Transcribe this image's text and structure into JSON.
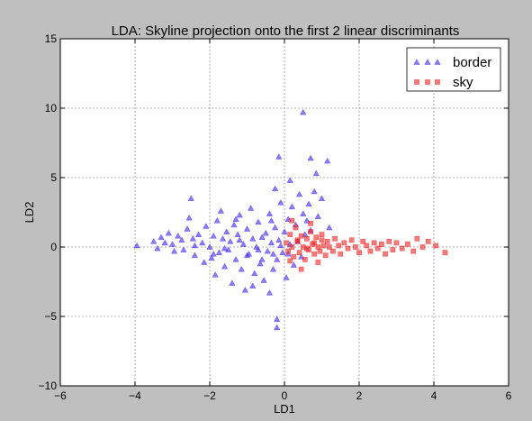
{
  "chart_data": {
    "type": "scatter",
    "title": "LDA: Skyline projection onto the first 2 linear discriminants",
    "xlabel": "LD1",
    "ylabel": "LD2",
    "xlim": [
      -6,
      6
    ],
    "ylim": [
      -10,
      15
    ],
    "x_ticks": [
      "−6",
      "−4",
      "−2",
      "0",
      "2",
      "4",
      "6"
    ],
    "y_ticks": [
      "−10",
      "−5",
      "0",
      "5",
      "10",
      "15"
    ],
    "grid": true,
    "legend_position": "top-right",
    "series": [
      {
        "name": "border",
        "marker": "triangle",
        "color": "#4422ee",
        "points": [
          [
            -3.95,
            0.1
          ],
          [
            -3.5,
            0.4
          ],
          [
            -3.4,
            -0.1
          ],
          [
            -3.3,
            0.7
          ],
          [
            -3.2,
            0.3
          ],
          [
            -3.1,
            1.0
          ],
          [
            -3.0,
            0.2
          ],
          [
            -2.95,
            -0.3
          ],
          [
            -2.85,
            0.8
          ],
          [
            -2.75,
            0.5
          ],
          [
            -2.7,
            -0.2
          ],
          [
            -2.6,
            1.3
          ],
          [
            -2.55,
            2.1
          ],
          [
            -2.5,
            3.5
          ],
          [
            -2.45,
            0.6
          ],
          [
            -2.4,
            -0.6
          ],
          [
            -2.3,
            0.9
          ],
          [
            -2.2,
            0.3
          ],
          [
            -2.15,
            -1.1
          ],
          [
            -2.1,
            1.5
          ],
          [
            -2.0,
            0.0
          ],
          [
            -1.95,
            -0.8
          ],
          [
            -1.9,
            0.8
          ],
          [
            -1.85,
            -2.0
          ],
          [
            -1.8,
            1.9
          ],
          [
            -1.75,
            -0.4
          ],
          [
            -1.7,
            2.6
          ],
          [
            -1.65,
            0.6
          ],
          [
            -1.6,
            -1.4
          ],
          [
            -1.55,
            1.1
          ],
          [
            -1.5,
            -0.2
          ],
          [
            -1.45,
            0.4
          ],
          [
            -1.4,
            -2.6
          ],
          [
            -1.35,
            1.6
          ],
          [
            -1.3,
            -0.9
          ],
          [
            -1.25,
            0.9
          ],
          [
            -1.2,
            2.3
          ],
          [
            -1.15,
            -1.6
          ],
          [
            -1.1,
            0.2
          ],
          [
            -1.05,
            -3.1
          ],
          [
            -1.0,
            1.3
          ],
          [
            -0.95,
            -0.5
          ],
          [
            -0.9,
            2.8
          ],
          [
            -0.85,
            0.6
          ],
          [
            -0.8,
            -1.9
          ],
          [
            -0.75,
            0.0
          ],
          [
            -0.7,
            1.8
          ],
          [
            -0.65,
            -1.2
          ],
          [
            -0.6,
            0.7
          ],
          [
            -0.55,
            -2.4
          ],
          [
            -0.5,
            1.0
          ],
          [
            -0.45,
            -0.3
          ],
          [
            -0.4,
            2.4
          ],
          [
            -0.35,
            0.3
          ],
          [
            -0.3,
            -1.6
          ],
          [
            -0.25,
            1.4
          ],
          [
            -0.2,
            -0.9
          ],
          [
            -0.15,
            0.5
          ],
          [
            -0.1,
            3.2
          ],
          [
            -0.05,
            -0.4
          ],
          [
            0.0,
            1.1
          ],
          [
            0.05,
            -2.2
          ],
          [
            0.1,
            2.0
          ],
          [
            0.15,
            0.2
          ],
          [
            0.2,
            2.9
          ],
          [
            0.25,
            -1.3
          ],
          [
            0.3,
            1.6
          ],
          [
            0.35,
            0.4
          ],
          [
            0.4,
            3.8
          ],
          [
            0.45,
            -0.7
          ],
          [
            0.5,
            2.4
          ],
          [
            0.55,
            0.9
          ],
          [
            0.6,
            1.9
          ],
          [
            0.65,
            3.1
          ],
          [
            0.7,
            1.2
          ],
          [
            0.8,
            4.0
          ],
          [
            0.9,
            2.2
          ],
          [
            1.0,
            3.5
          ],
          [
            1.2,
            1.4
          ],
          [
            -0.25,
            4.2
          ],
          [
            -0.15,
            6.5
          ],
          [
            0.5,
            9.7
          ],
          [
            0.7,
            6.4
          ],
          [
            0.85,
            5.3
          ],
          [
            1.15,
            6.2
          ],
          [
            0.15,
            4.8
          ],
          [
            -0.2,
            -5.2
          ],
          [
            -0.2,
            -5.8
          ],
          [
            -0.4,
            -3.3
          ],
          [
            -0.85,
            -2.8
          ],
          [
            -1.6,
            -0.1
          ],
          [
            -1.0,
            -0.6
          ],
          [
            -0.7,
            -0.2
          ],
          [
            -0.3,
            -0.5
          ],
          [
            -1.2,
            0.5
          ],
          [
            -0.6,
            -0.9
          ],
          [
            -2.4,
            0.1
          ],
          [
            -1.9,
            -0.5
          ],
          [
            -0.1,
            0.1
          ],
          [
            0.1,
            -0.5
          ],
          [
            -0.35,
            1.9
          ],
          [
            -1.3,
            2.0
          ]
        ]
      },
      {
        "name": "sky",
        "marker": "square",
        "color": "#ee2222",
        "points": [
          [
            0.05,
            0.3
          ],
          [
            0.1,
            -0.3
          ],
          [
            0.15,
            0.9
          ],
          [
            0.2,
            0.0
          ],
          [
            0.25,
            -0.7
          ],
          [
            0.3,
            1.4
          ],
          [
            0.35,
            0.4
          ],
          [
            0.4,
            -0.4
          ],
          [
            0.45,
            0.8
          ],
          [
            0.5,
            0.0
          ],
          [
            0.55,
            -0.9
          ],
          [
            0.6,
            0.6
          ],
          [
            0.65,
            -0.2
          ],
          [
            0.7,
            1.1
          ],
          [
            0.75,
            0.2
          ],
          [
            0.8,
            -0.5
          ],
          [
            0.85,
            0.7
          ],
          [
            0.9,
            0.0
          ],
          [
            0.95,
            -0.3
          ],
          [
            1.0,
            0.5
          ],
          [
            1.05,
            0.1
          ],
          [
            1.1,
            -0.6
          ],
          [
            1.15,
            0.4
          ],
          [
            1.2,
            0.0
          ],
          [
            1.3,
            -0.3
          ],
          [
            1.35,
            0.6
          ],
          [
            1.45,
            0.1
          ],
          [
            1.5,
            -0.5
          ],
          [
            1.6,
            0.3
          ],
          [
            1.7,
            -0.1
          ],
          [
            1.8,
            0.5
          ],
          [
            1.9,
            0.0
          ],
          [
            2.0,
            -0.4
          ],
          [
            2.1,
            0.4
          ],
          [
            2.2,
            0.1
          ],
          [
            2.3,
            -0.3
          ],
          [
            2.4,
            0.3
          ],
          [
            2.5,
            -0.1
          ],
          [
            2.6,
            0.2
          ],
          [
            2.7,
            -0.5
          ],
          [
            2.8,
            0.4
          ],
          [
            2.9,
            -0.2
          ],
          [
            3.0,
            0.3
          ],
          [
            3.15,
            -0.1
          ],
          [
            3.3,
            0.2
          ],
          [
            3.45,
            -0.3
          ],
          [
            3.55,
            0.6
          ],
          [
            3.7,
            0.0
          ],
          [
            3.85,
            0.4
          ],
          [
            4.05,
            0.1
          ],
          [
            4.3,
            -0.4
          ],
          [
            0.2,
            1.9
          ],
          [
            0.45,
            -1.6
          ],
          [
            0.7,
            1.7
          ],
          [
            0.9,
            -1.1
          ],
          [
            0.35,
            0.5
          ],
          [
            0.6,
            -0.1
          ],
          [
            0.8,
            0.3
          ],
          [
            1.0,
            0.9
          ],
          [
            0.15,
            -1.0
          ]
        ]
      }
    ]
  }
}
